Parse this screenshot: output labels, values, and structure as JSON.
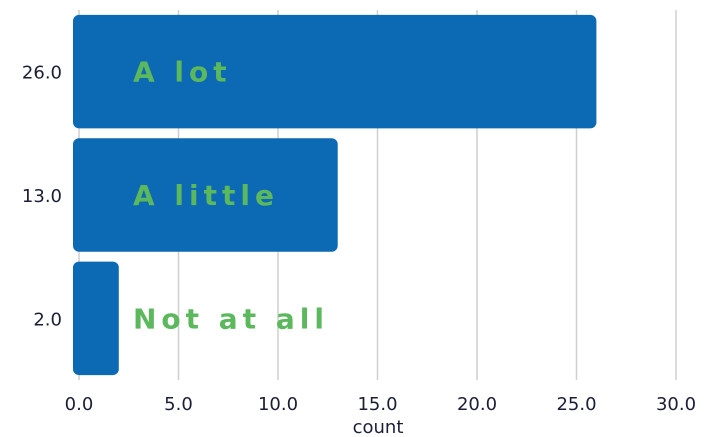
{
  "chart_data": {
    "type": "bar",
    "orientation": "horizontal",
    "categories": [
      "26.0",
      "13.0",
      "2.0"
    ],
    "values": [
      26,
      13,
      2
    ],
    "bar_labels": [
      "A lot",
      "A little",
      "Not at all"
    ],
    "xlabel": "count",
    "ylabel": "",
    "xlim": [
      0,
      30
    ],
    "xticks": [
      "0.0",
      "5.0",
      "10.0",
      "15.0",
      "20.0",
      "25.0",
      "30.0"
    ],
    "grid": "vertical",
    "colors": {
      "bar": "#0b6ab3",
      "label": "#5cb85c",
      "grid": "#cfcfcf",
      "text": "#1a1f36"
    }
  }
}
